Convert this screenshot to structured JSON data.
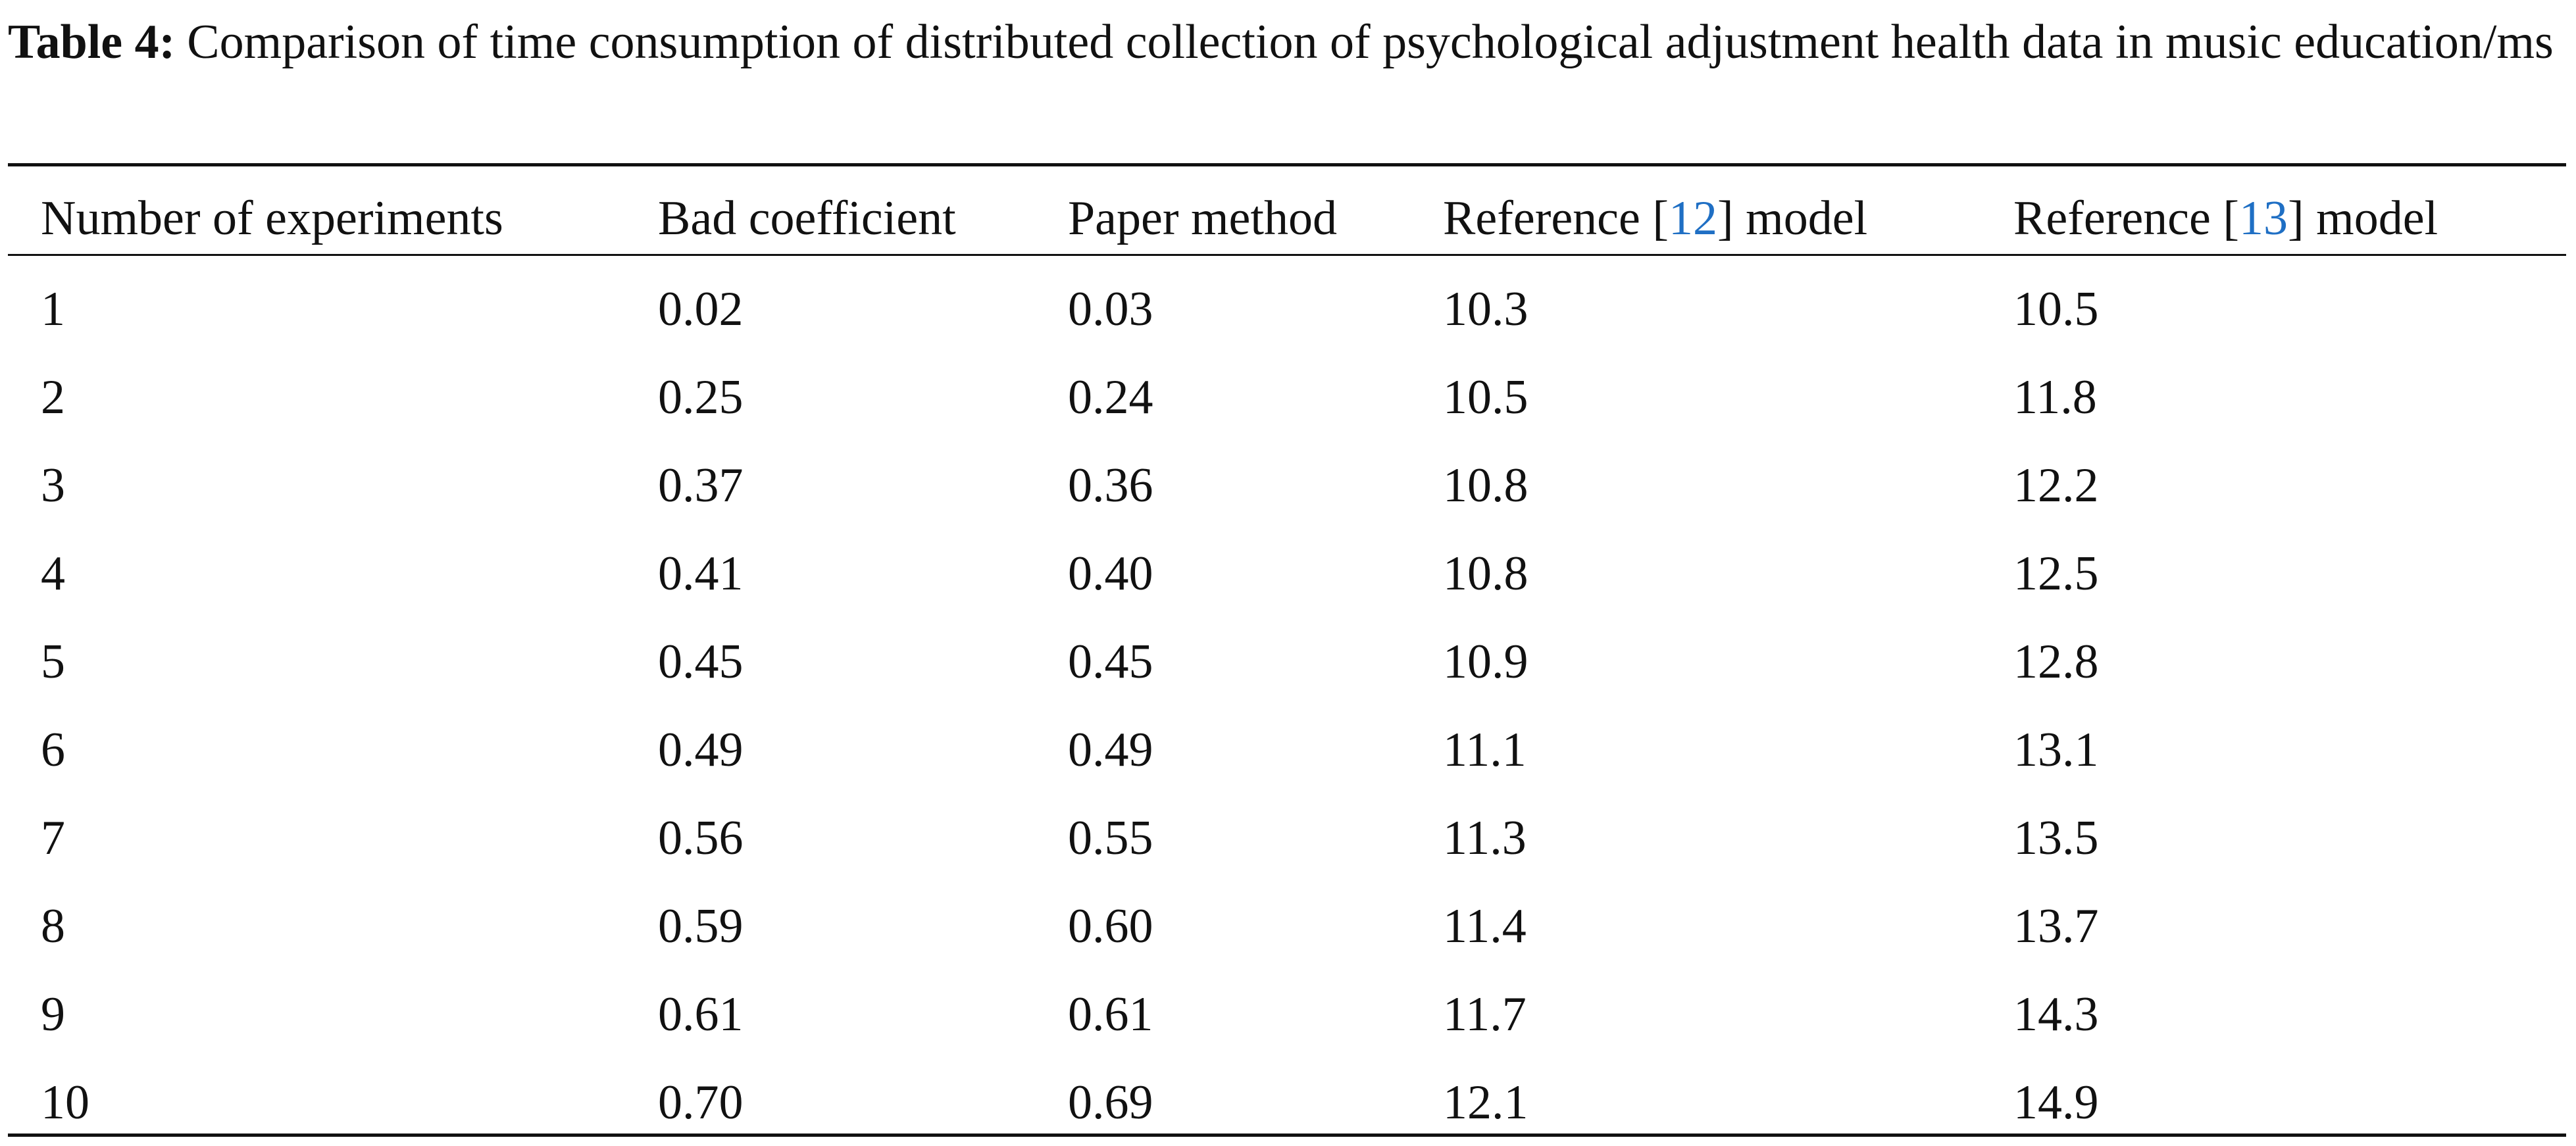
{
  "caption": {
    "label": "Table 4:",
    "text": "Comparison of time consumption of distributed collection of psychological adjustment health data in music education/ms"
  },
  "table": {
    "headers": [
      {
        "text": "Number of experiments"
      },
      {
        "text": "Bad coefficient"
      },
      {
        "text": "Paper method"
      },
      {
        "prefix": "Reference [",
        "ref": "12",
        "suffix": "] model"
      },
      {
        "prefix": "Reference [",
        "ref": "13",
        "suffix": "] model"
      }
    ],
    "rows": [
      [
        "1",
        "0.02",
        "0.03",
        "10.3",
        "10.5"
      ],
      [
        "2",
        "0.25",
        "0.24",
        "10.5",
        "11.8"
      ],
      [
        "3",
        "0.37",
        "0.36",
        "10.8",
        "12.2"
      ],
      [
        "4",
        "0.41",
        "0.40",
        "10.8",
        "12.5"
      ],
      [
        "5",
        "0.45",
        "0.45",
        "10.9",
        "12.8"
      ],
      [
        "6",
        "0.49",
        "0.49",
        "11.1",
        "13.1"
      ],
      [
        "7",
        "0.56",
        "0.55",
        "11.3",
        "13.5"
      ],
      [
        "8",
        "0.59",
        "0.60",
        "11.4",
        "13.7"
      ],
      [
        "9",
        "0.61",
        "0.61",
        "11.7",
        "14.3"
      ],
      [
        "10",
        "0.70",
        "0.69",
        "12.1",
        "14.9"
      ]
    ]
  }
}
